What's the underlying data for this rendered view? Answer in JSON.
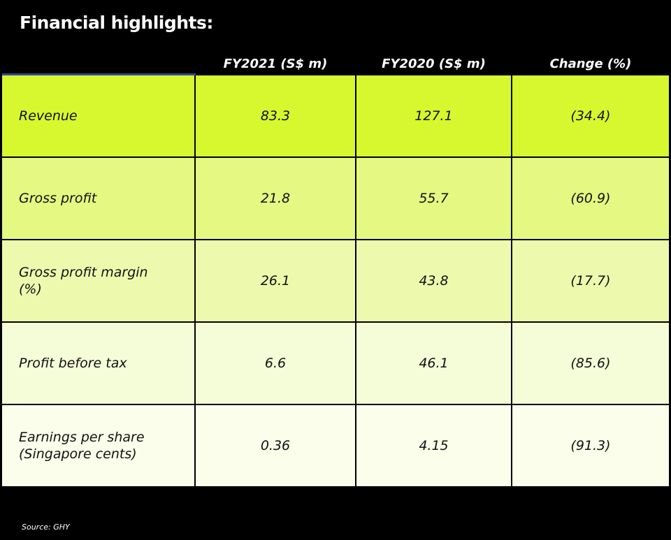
{
  "title": "Financial highlights:",
  "chart_data": {
    "type": "table",
    "columns": [
      "",
      "FY2021 (S$ m)",
      "FY2020 (S$ m)",
      "Change (%)"
    ],
    "rows": [
      {
        "label": "Revenue",
        "fy2021": "83.3",
        "fy2020": "127.1",
        "change": "(34.4)",
        "color": "#d7f72e"
      },
      {
        "label": "Gross profit",
        "fy2021": "21.8",
        "fy2020": "55.7",
        "change": "(60.9)",
        "color": "#e4f882"
      },
      {
        "label": "Gross profit margin (%)",
        "fy2021": "26.1",
        "fy2020": "43.8",
        "change": "(17.7)",
        "color": "#edfaae"
      },
      {
        "label": "Profit before tax",
        "fy2021": "6.6",
        "fy2020": "46.1",
        "change": "(85.6)",
        "color": "#f5fcd8"
      },
      {
        "label": "Earnings per share (Singapore cents)",
        "fy2021": "0.36",
        "fy2020": "4.15",
        "change": "(91.3)",
        "color": "#fafeea"
      }
    ]
  },
  "source": "Source: GHY"
}
